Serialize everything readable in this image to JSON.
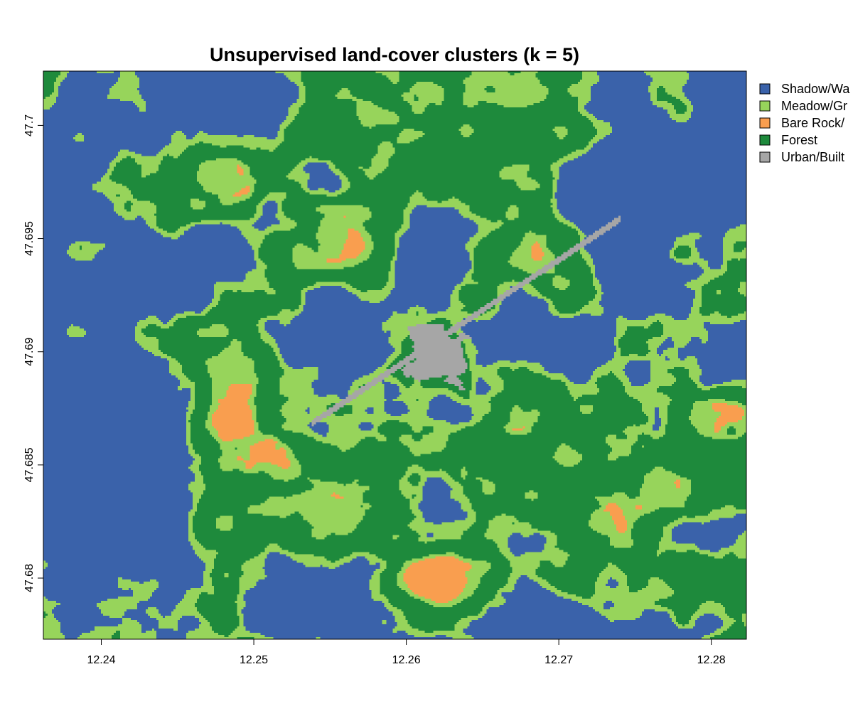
{
  "map": {
    "title": "Unsupervised land-cover clusters (k = 5)",
    "x_axis": {
      "range": [
        12.2362,
        12.2823
      ],
      "ticks": [
        12.24,
        12.25,
        12.26,
        12.27,
        12.28
      ],
      "tick_labels": [
        "12.24",
        "12.25",
        "12.26",
        "12.27",
        "12.28"
      ]
    },
    "y_axis": {
      "range": [
        47.6773,
        47.7024
      ],
      "ticks": [
        47.68,
        47.685,
        47.69,
        47.695,
        47.7
      ],
      "tick_labels": [
        "47.68",
        "47.685",
        "47.69",
        "47.695",
        "47.7"
      ]
    },
    "legend": {
      "placement": "right, outside plot",
      "items": [
        {
          "label": "Shadow/Wa",
          "color": "#3a62aa"
        },
        {
          "label": "Meadow/Gr",
          "color": "#97d45b"
        },
        {
          "label": "Bare Rock/",
          "color": "#f99e4f"
        },
        {
          "label": "Forest",
          "color": "#1e8a3c"
        },
        {
          "label": "Urban/Built",
          "color": "#a6a6a6"
        }
      ]
    }
  }
}
